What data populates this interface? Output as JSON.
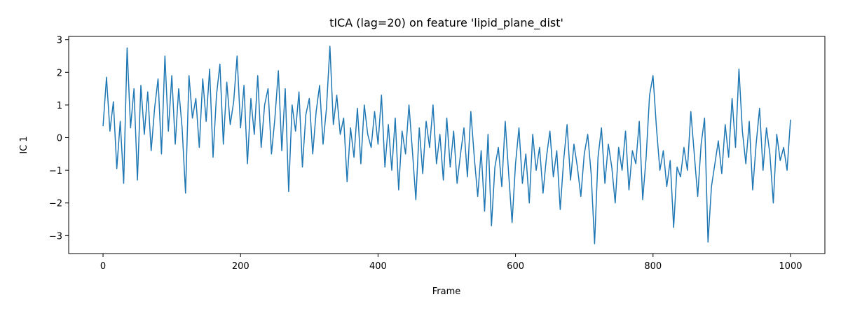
{
  "chart_data": {
    "type": "line",
    "title": "tICA (lag=20) on feature 'lipid_plane_dist'",
    "xlabel": "Frame",
    "ylabel": "IC 1",
    "x": [
      0,
      5,
      10,
      15,
      20,
      25,
      30,
      35,
      40,
      45,
      50,
      55,
      60,
      65,
      70,
      75,
      80,
      85,
      90,
      95,
      100,
      105,
      110,
      115,
      120,
      125,
      130,
      135,
      140,
      145,
      150,
      155,
      160,
      165,
      170,
      175,
      180,
      185,
      190,
      195,
      200,
      205,
      210,
      215,
      220,
      225,
      230,
      235,
      240,
      245,
      250,
      255,
      260,
      265,
      270,
      275,
      280,
      285,
      290,
      295,
      300,
      305,
      310,
      315,
      320,
      325,
      330,
      335,
      340,
      345,
      350,
      355,
      360,
      365,
      370,
      375,
      380,
      385,
      390,
      395,
      400,
      405,
      410,
      415,
      420,
      425,
      430,
      435,
      440,
      445,
      450,
      455,
      460,
      465,
      470,
      475,
      480,
      485,
      490,
      495,
      500,
      505,
      510,
      515,
      520,
      525,
      530,
      535,
      540,
      545,
      550,
      555,
      560,
      565,
      570,
      575,
      580,
      585,
      590,
      595,
      600,
      605,
      610,
      615,
      620,
      625,
      630,
      635,
      640,
      645,
      650,
      655,
      660,
      665,
      670,
      675,
      680,
      685,
      690,
      695,
      700,
      705,
      710,
      715,
      720,
      725,
      730,
      735,
      740,
      745,
      750,
      755,
      760,
      765,
      770,
      775,
      780,
      785,
      790,
      795,
      800,
      805,
      810,
      815,
      820,
      825,
      830,
      835,
      840,
      845,
      850,
      855,
      860,
      865,
      870,
      875,
      880,
      885,
      890,
      895,
      900,
      905,
      910,
      915,
      920,
      925,
      930,
      935,
      940,
      945,
      950,
      955,
      960,
      965,
      970,
      975,
      980,
      985,
      990,
      995,
      1000
    ],
    "series": [
      {
        "name": "IC 1",
        "color": "#1f77b4",
        "values": [
          0.35,
          1.85,
          0.2,
          1.1,
          -0.95,
          0.5,
          -1.4,
          2.75,
          0.3,
          1.5,
          -1.3,
          1.6,
          0.1,
          1.4,
          -0.4,
          0.9,
          1.8,
          -0.5,
          2.5,
          0.2,
          1.9,
          -0.2,
          1.5,
          0.3,
          -1.7,
          1.9,
          0.6,
          1.2,
          -0.3,
          1.8,
          0.5,
          2.1,
          -0.6,
          1.3,
          2.25,
          -0.2,
          1.7,
          0.4,
          1.1,
          2.5,
          0.3,
          1.6,
          -0.8,
          1.2,
          0.1,
          1.9,
          -0.3,
          1.0,
          1.5,
          -0.5,
          0.6,
          2.05,
          -0.4,
          1.5,
          -1.65,
          1.0,
          0.2,
          1.4,
          -0.9,
          0.7,
          1.2,
          -0.5,
          0.8,
          1.6,
          -0.2,
          0.9,
          2.8,
          0.4,
          1.3,
          0.1,
          0.6,
          -1.35,
          0.3,
          -0.6,
          0.9,
          -0.8,
          1.0,
          0.1,
          -0.3,
          0.8,
          -0.2,
          1.3,
          -0.9,
          0.4,
          -1.0,
          0.6,
          -1.6,
          0.2,
          -0.5,
          1.0,
          -0.4,
          -1.9,
          0.3,
          -1.1,
          0.5,
          -0.3,
          1.0,
          -0.8,
          0.1,
          -1.3,
          0.6,
          -0.9,
          0.2,
          -1.4,
          -0.5,
          0.3,
          -1.2,
          0.8,
          -0.6,
          -1.8,
          -0.4,
          -2.25,
          0.1,
          -2.7,
          -0.9,
          -0.3,
          -1.5,
          0.5,
          -1.1,
          -2.6,
          -0.8,
          0.3,
          -1.4,
          -0.5,
          -2.0,
          0.1,
          -1.0,
          -0.3,
          -1.7,
          -0.6,
          0.2,
          -1.2,
          -0.4,
          -2.2,
          -0.7,
          0.4,
          -1.3,
          -0.2,
          -0.9,
          -1.8,
          -0.5,
          0.1,
          -1.1,
          -3.25,
          -0.6,
          0.3,
          -1.4,
          -0.2,
          -0.9,
          -2.0,
          -0.3,
          -1.0,
          0.2,
          -1.6,
          -0.4,
          -0.8,
          0.5,
          -1.9,
          -0.6,
          1.3,
          1.9,
          0.3,
          -1.0,
          -0.4,
          -1.5,
          -0.7,
          -2.75,
          -0.9,
          -1.2,
          -0.3,
          -1.0,
          0.8,
          -0.5,
          -1.8,
          -0.2,
          0.6,
          -3.2,
          -1.5,
          -0.8,
          -0.1,
          -1.1,
          0.4,
          -0.6,
          1.2,
          -0.3,
          2.1,
          0.2,
          -0.8,
          0.5,
          -1.6,
          -0.2,
          0.9,
          -1.0,
          0.3,
          -0.5,
          -2.0,
          0.1,
          -0.7,
          -0.3,
          -1.0,
          0.55
        ]
      }
    ],
    "xlim": [
      -50,
      1050
    ],
    "xticks": [
      0,
      200,
      400,
      600,
      800,
      1000
    ],
    "ylim": [
      -3.55,
      3.1
    ],
    "yticks": [
      {
        "value": -3,
        "label": "−3"
      },
      {
        "value": -2,
        "label": "−2"
      },
      {
        "value": -1,
        "label": "−1"
      },
      0,
      1,
      2,
      3
    ]
  }
}
